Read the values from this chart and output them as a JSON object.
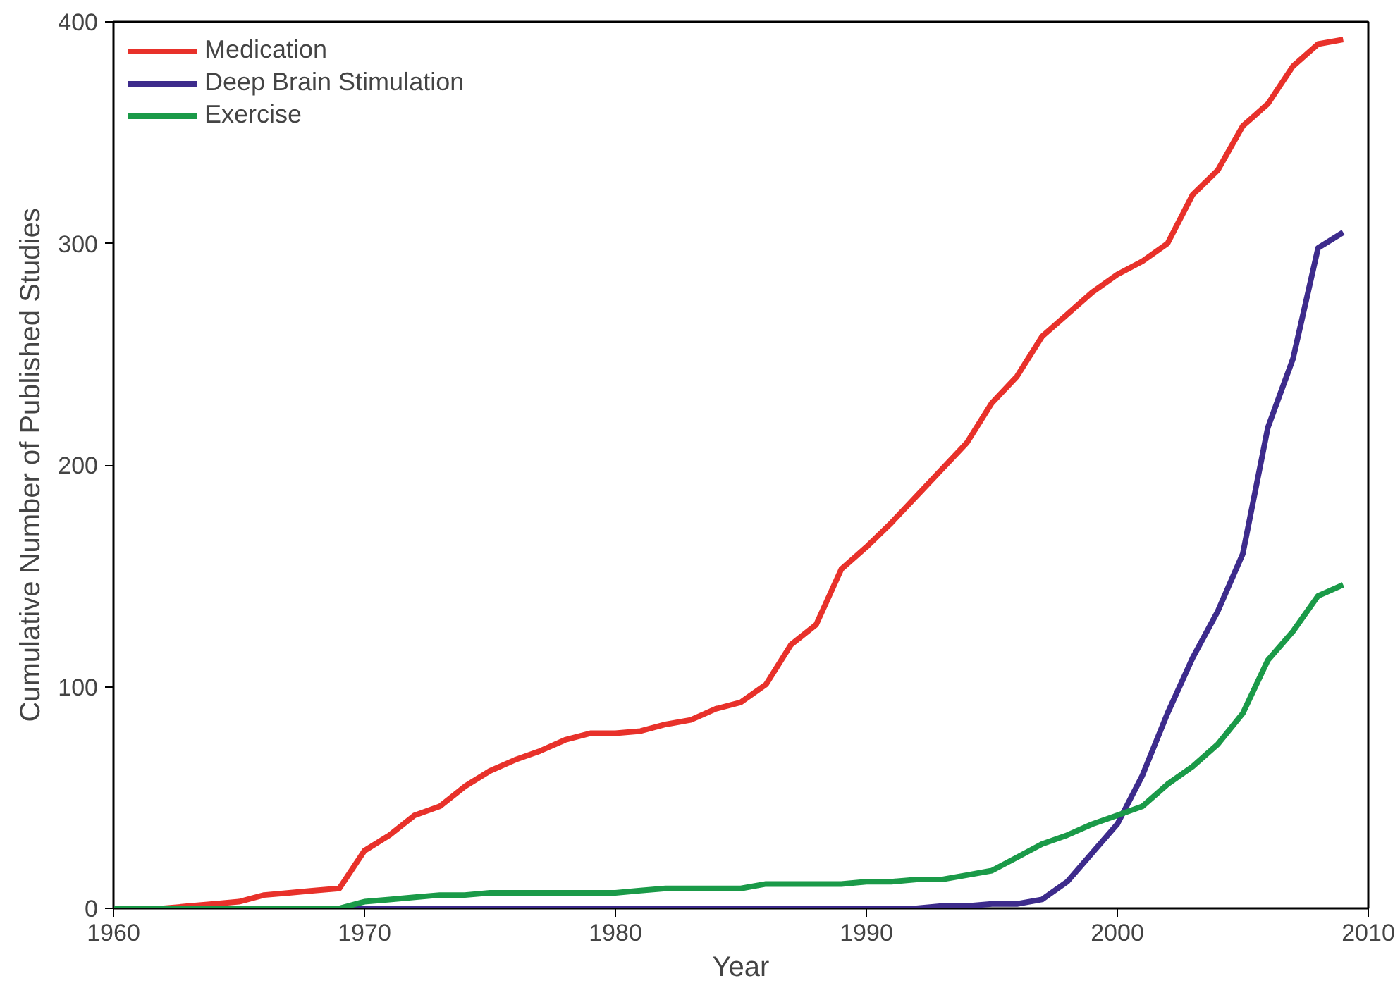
{
  "chart_data": {
    "type": "line",
    "xlabel": "Year",
    "ylabel": "Cumulative Number of Published Studies",
    "x": [
      1960,
      1961,
      1962,
      1963,
      1964,
      1965,
      1966,
      1967,
      1968,
      1969,
      1970,
      1971,
      1972,
      1973,
      1974,
      1975,
      1976,
      1977,
      1978,
      1979,
      1980,
      1981,
      1982,
      1983,
      1984,
      1985,
      1986,
      1987,
      1988,
      1989,
      1990,
      1991,
      1992,
      1993,
      1994,
      1995,
      1996,
      1997,
      1998,
      1999,
      2000,
      2001,
      2002,
      2003,
      2004,
      2005,
      2006,
      2007,
      2008,
      2009
    ],
    "series": [
      {
        "name": "Medication",
        "color": "#e8312a",
        "values": [
          0,
          0,
          0,
          1,
          2,
          3,
          6,
          7,
          8,
          9,
          26,
          33,
          42,
          46,
          55,
          62,
          67,
          71,
          76,
          79,
          79,
          80,
          83,
          85,
          90,
          93,
          101,
          119,
          128,
          153,
          163,
          174,
          186,
          198,
          210,
          228,
          240,
          258,
          268,
          278,
          286,
          292,
          300,
          322,
          333,
          353,
          363,
          380,
          390,
          392
        ]
      },
      {
        "name": "Deep Brain Stimulation",
        "color": "#3d2b8c",
        "values": [
          null,
          null,
          null,
          null,
          null,
          null,
          null,
          null,
          0,
          0,
          0,
          0,
          0,
          0,
          0,
          0,
          0,
          0,
          0,
          0,
          0,
          0,
          0,
          0,
          0,
          0,
          0,
          0,
          0,
          0,
          0,
          0,
          0,
          1,
          1,
          2,
          2,
          4,
          12,
          25,
          38,
          60,
          88,
          113,
          134,
          160,
          217,
          248,
          298,
          305
        ]
      },
      {
        "name": "Exercise",
        "color": "#1a9a48",
        "values": [
          0,
          0,
          0,
          0,
          0,
          0,
          0,
          0,
          0,
          0,
          3,
          4,
          5,
          6,
          6,
          7,
          7,
          7,
          7,
          7,
          7,
          8,
          9,
          9,
          9,
          9,
          11,
          11,
          11,
          11,
          12,
          12,
          13,
          13,
          15,
          17,
          23,
          29,
          33,
          38,
          42,
          46,
          56,
          64,
          74,
          88,
          112,
          125,
          141,
          146
        ]
      }
    ],
    "xlim": [
      1960,
      2010
    ],
    "xticks": [
      1960,
      1970,
      1980,
      1990,
      2000,
      2010
    ],
    "ylim": [
      0,
      400
    ],
    "yticks": [
      0,
      100,
      200,
      300,
      400
    ],
    "grid": false,
    "legend": "top left",
    "line_style": "solid"
  }
}
